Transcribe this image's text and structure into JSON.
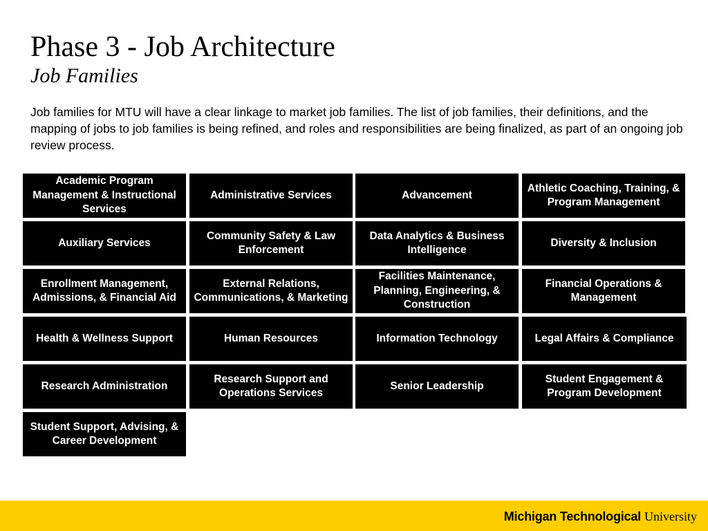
{
  "header": {
    "title": "Phase 3 - Job Architecture",
    "subtitle": "Job Families"
  },
  "intro": "Job families for MTU will have a clear linkage to market job families.  The list of job families, their definitions, and the mapping of jobs to job families is being refined, and roles and responsibilities are being finalized, as part of an ongoing job review process.",
  "job_families": [
    "Academic Program Management & Instructional Services",
    "Administrative Services",
    "Advancement",
    "Athletic Coaching, Training, & Program Management",
    "Auxiliary Services",
    "Community Safety & Law Enforcement",
    "Data Analytics & Business Intelligence",
    "Diversity & Inclusion",
    "Enrollment Management, Admissions, & Financial Aid",
    "External Relations, Communications, & Marketing",
    "Facilities Maintenance, Planning, Engineering, & Construction",
    "Financial Operations & Management",
    "Health & Wellness Support",
    "Human Resources",
    "Information Technology",
    "Legal Affairs & Compliance",
    "Research Administration",
    "Research Support and Operations Services",
    "Senior Leadership",
    "Student Engagement & Program Development",
    "Student Support, Advising, & Career Development"
  ],
  "footer": {
    "logo_bold": "Michigan Technological",
    "logo_light": "University",
    "band_color": "#ffcd00"
  },
  "colors": {
    "tile_background": "#000000",
    "tile_text": "#ffffff"
  }
}
